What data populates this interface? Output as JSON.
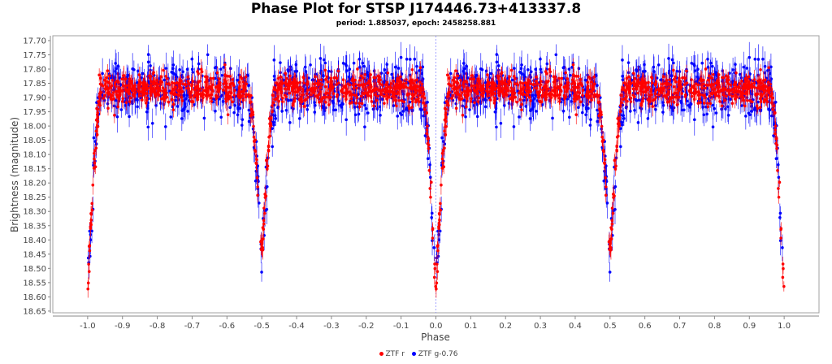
{
  "chart_data": {
    "type": "scatter",
    "title": "Phase Plot for STSP J174446.73+413337.8",
    "subtitle": "period: 1.885037, epoch: 2458258.881",
    "xlabel": "Phase",
    "ylabel": "Brightness (magnitude)",
    "xlim": [
      -1.1,
      1.1
    ],
    "ylim": [
      17.683,
      18.656
    ],
    "y_inverted": false,
    "xticks": [
      "-1.0",
      "-0.9",
      "-0.8",
      "-0.7",
      "-0.6",
      "-0.5",
      "-0.4",
      "-0.3",
      "-0.2",
      "-0.1",
      "0.0",
      "0.1",
      "0.2",
      "0.3",
      "0.4",
      "0.5",
      "0.6",
      "0.7",
      "0.8",
      "0.9",
      "1.0"
    ],
    "yticks": [
      "17.70",
      "17.75",
      "17.80",
      "17.85",
      "17.90",
      "17.95",
      "18.00",
      "18.05",
      "18.10",
      "18.15",
      "18.20",
      "18.25",
      "18.30",
      "18.35",
      "18.40",
      "18.45",
      "18.50",
      "18.55",
      "18.60",
      "18.65"
    ],
    "legend_position": "bottom",
    "marker_line_phase": 0.0,
    "model": {
      "baseline_mag": 17.87,
      "primary_eclipse": {
        "phase": 0.0,
        "min_mag": 18.58,
        "half_width": 0.04
      },
      "secondary_eclipse": {
        "phase": 0.5,
        "min_mag": 18.48,
        "half_width": 0.04
      }
    },
    "series": [
      {
        "name": "ZTF r",
        "color": "#ff0000",
        "n_points": 900,
        "scatter_mag": 0.03,
        "error_mag": 0.025
      },
      {
        "name": "ZTF g-0.76",
        "color": "#0000ff",
        "n_points": 700,
        "scatter_mag": 0.05,
        "error_mag": 0.04
      }
    ]
  }
}
